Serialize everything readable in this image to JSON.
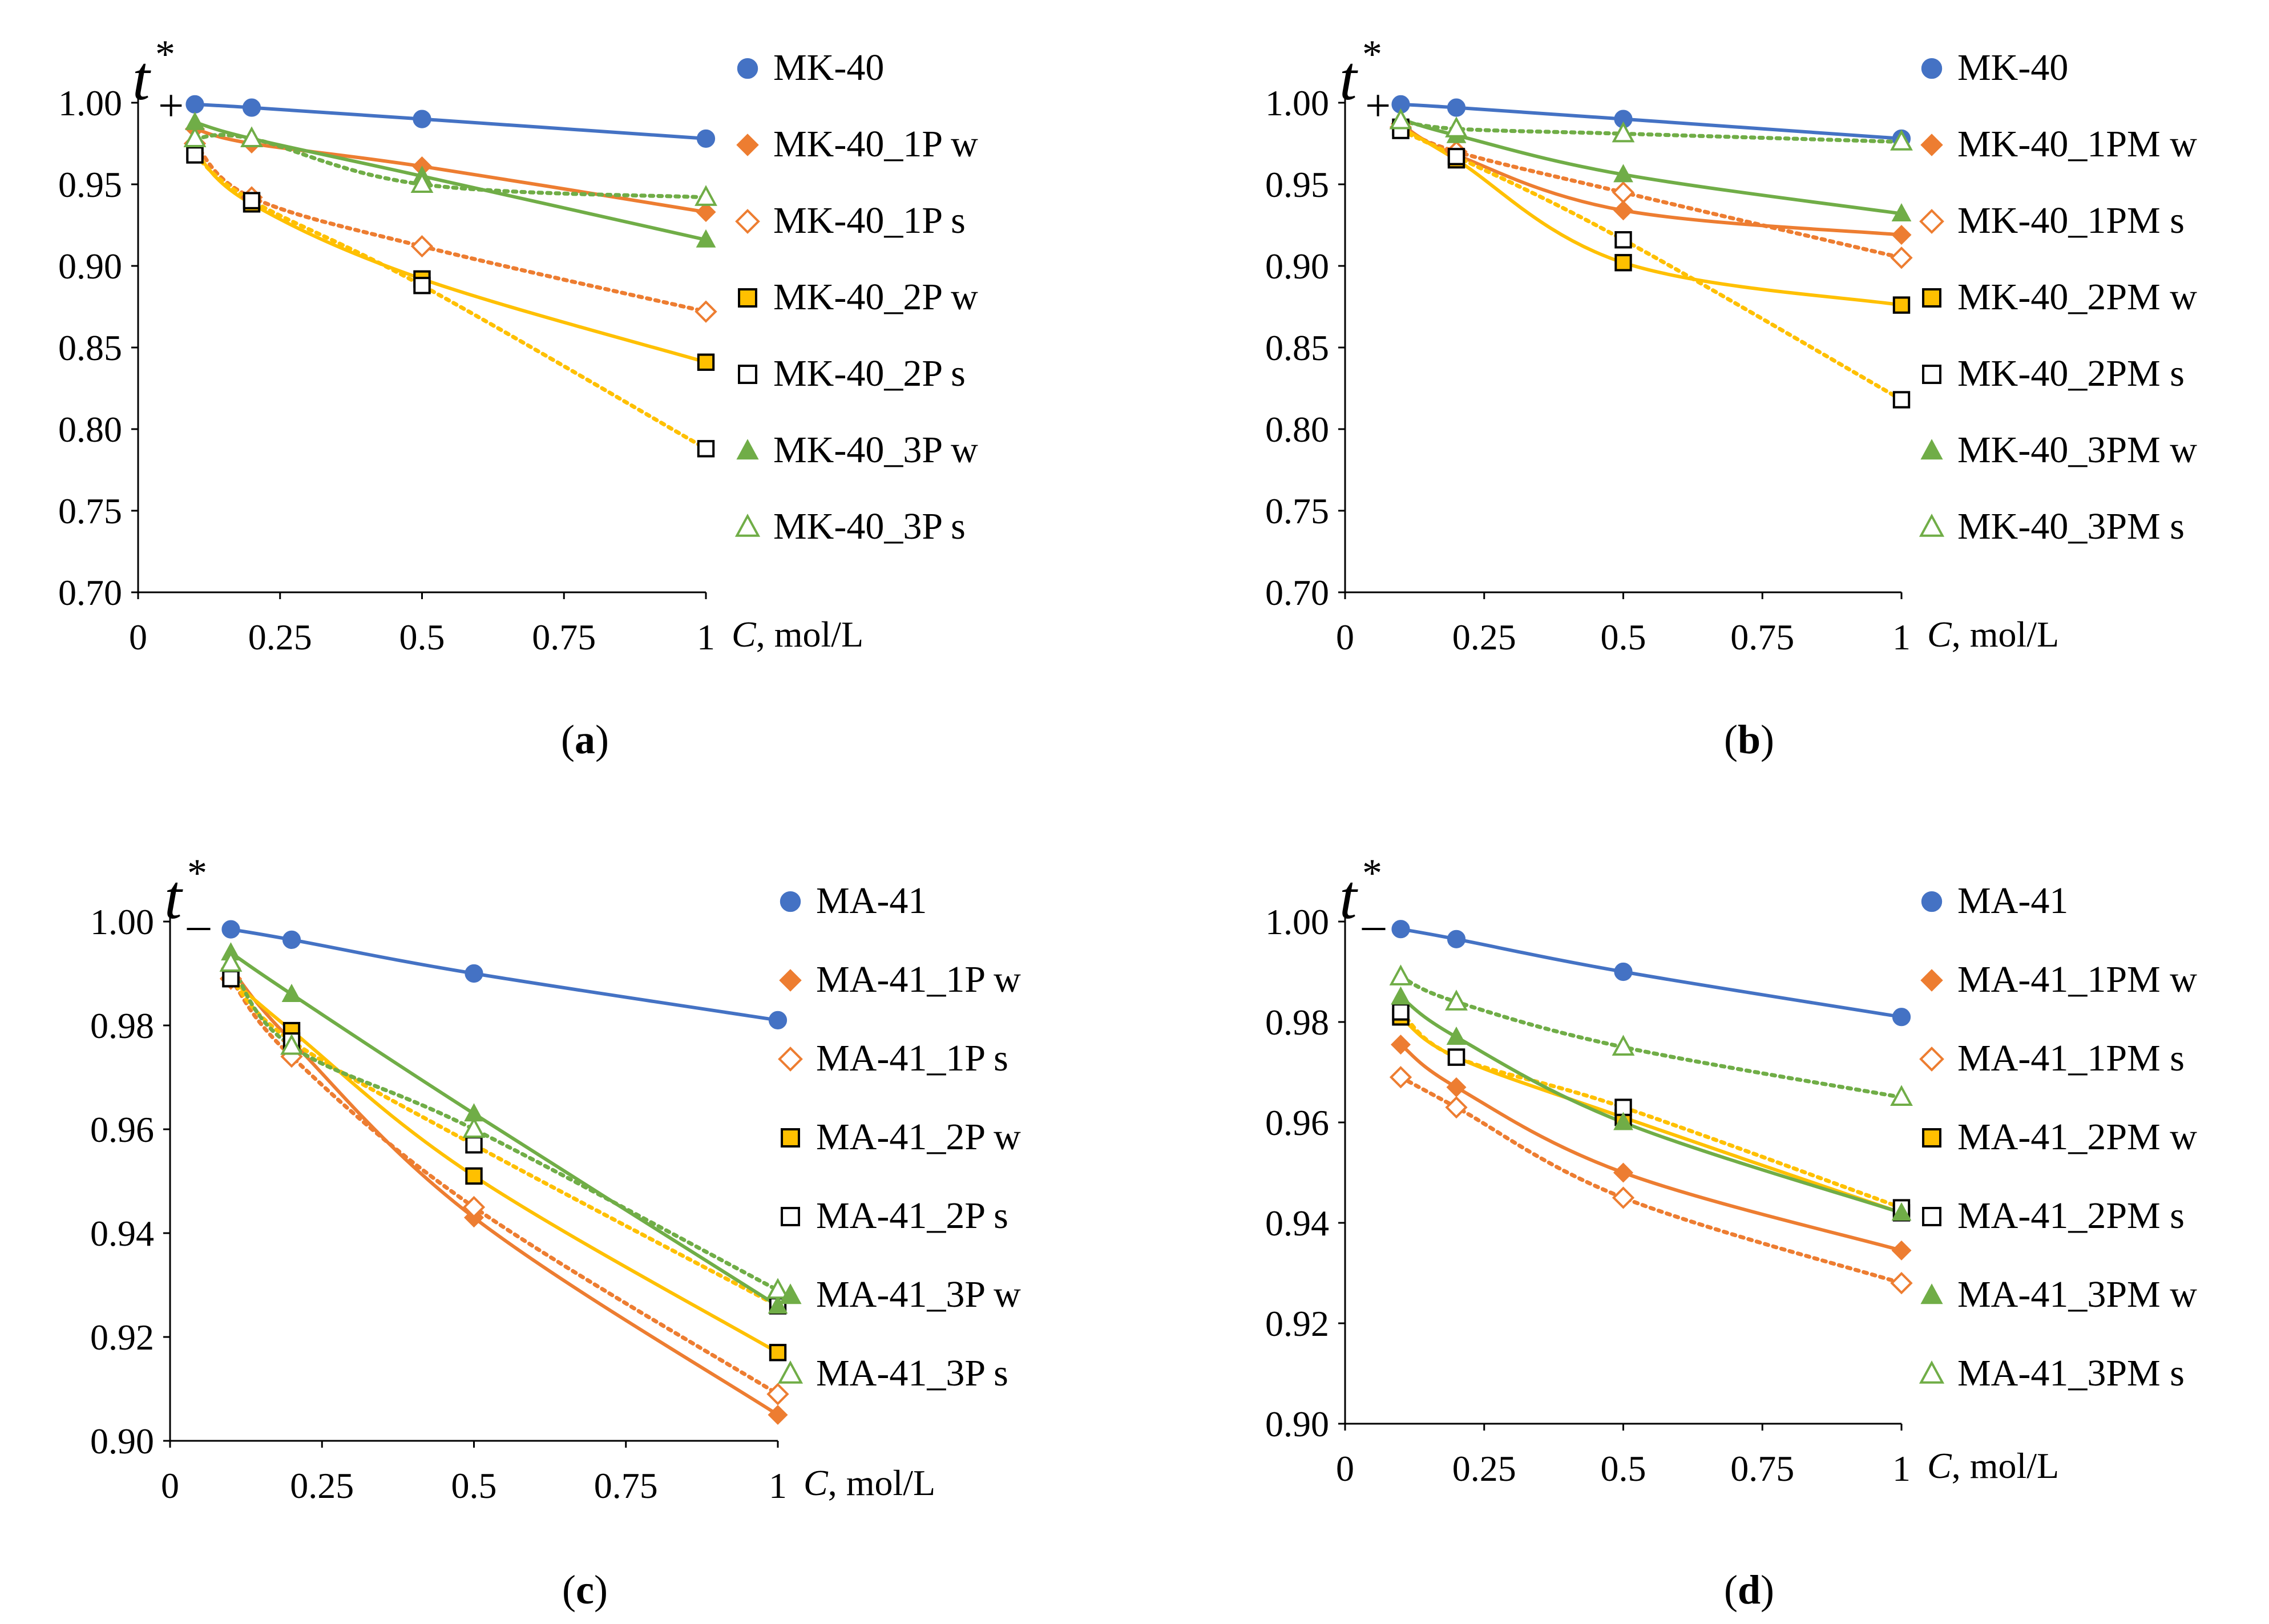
{
  "chart_data": [
    {
      "id": "a",
      "type": "line",
      "panel_label": "a",
      "ylabel": {
        "main": "t",
        "sub": "+",
        "sup": "*"
      },
      "xlabel": {
        "var": "C",
        "unit": ", mol/L"
      },
      "xlim": [
        0,
        1
      ],
      "ylim": [
        0.7,
        1.0
      ],
      "xticks": [
        "0",
        "0.25",
        "0.5",
        "0.75",
        "1"
      ],
      "yticks": [
        "0.70",
        "0.75",
        "0.80",
        "0.85",
        "0.90",
        "0.95",
        "1.00"
      ],
      "x": [
        0.1,
        0.2,
        0.5,
        1.0
      ],
      "legend_position": "right",
      "series": [
        {
          "name": "MK-40",
          "values": [
            0.999,
            0.997,
            0.99,
            0.978
          ],
          "marker": "circle",
          "color": "#4472C4",
          "filled": true,
          "line": "solid"
        },
        {
          "name": "MK-40_1P w",
          "values": [
            0.984,
            0.975,
            0.961,
            0.933
          ],
          "marker": "diamond",
          "color": "#ED7D31",
          "filled": true,
          "line": "solid"
        },
        {
          "name": "MK-40_1P s",
          "values": [
            0.975,
            0.942,
            0.912,
            0.872
          ],
          "marker": "diamond",
          "color": "#ED7D31",
          "filled": false,
          "line": "dotted"
        },
        {
          "name": "MK-40_2P w",
          "values": [
            0.97,
            0.938,
            0.892,
            0.841
          ],
          "marker": "square",
          "color": "#FFC000",
          "filled": true,
          "line": "solid"
        },
        {
          "name": "MK-40_2P s",
          "values": [
            0.968,
            0.94,
            0.888,
            0.788
          ],
          "marker": "square",
          "color": "#000000",
          "filled": false,
          "line": "dotted"
        },
        {
          "name": "MK-40_3P w",
          "values": [
            0.988,
            0.978,
            0.955,
            0.916
          ],
          "marker": "triangle",
          "color": "#70AD47",
          "filled": true,
          "line": "solid"
        },
        {
          "name": "MK-40_3P s",
          "values": [
            0.978,
            0.978,
            0.95,
            0.942
          ],
          "marker": "triangle",
          "color": "#70AD47",
          "filled": false,
          "line": "dotted"
        }
      ]
    },
    {
      "id": "b",
      "type": "line",
      "panel_label": "b",
      "ylabel": {
        "main": "t",
        "sub": "+",
        "sup": "*"
      },
      "xlabel": {
        "var": "C",
        "unit": ", mol/L"
      },
      "xlim": [
        0,
        1
      ],
      "ylim": [
        0.7,
        1.0
      ],
      "xticks": [
        "0",
        "0.25",
        "0.5",
        "0.75",
        "1"
      ],
      "yticks": [
        "0.70",
        "0.75",
        "0.80",
        "0.85",
        "0.90",
        "0.95",
        "1.00"
      ],
      "x": [
        0.1,
        0.2,
        0.5,
        1.0
      ],
      "legend_position": "right",
      "series": [
        {
          "name": "MK-40",
          "values": [
            0.999,
            0.997,
            0.99,
            0.978
          ],
          "marker": "circle",
          "color": "#4472C4",
          "filled": true,
          "line": "solid"
        },
        {
          "name": "MK-40_1PM w",
          "values": [
            0.987,
            0.968,
            0.934,
            0.919
          ],
          "marker": "diamond",
          "color": "#ED7D31",
          "filled": true,
          "line": "solid"
        },
        {
          "name": "MK-40_1PM s",
          "values": [
            0.985,
            0.97,
            0.945,
            0.905
          ],
          "marker": "diamond",
          "color": "#ED7D31",
          "filled": false,
          "line": "dotted"
        },
        {
          "name": "MK-40_2PM w",
          "values": [
            0.985,
            0.965,
            0.902,
            0.876
          ],
          "marker": "square",
          "color": "#FFC000",
          "filled": true,
          "line": "solid"
        },
        {
          "name": "MK-40_2PM s",
          "values": [
            0.983,
            0.967,
            0.916,
            0.818
          ],
          "marker": "square",
          "color": "#000000",
          "filled": false,
          "line": "dotted"
        },
        {
          "name": "MK-40_3PM w",
          "values": [
            0.99,
            0.98,
            0.956,
            0.932
          ],
          "marker": "triangle",
          "color": "#70AD47",
          "filled": true,
          "line": "solid"
        },
        {
          "name": "MK-40_3PM s",
          "values": [
            0.989,
            0.984,
            0.981,
            0.976
          ],
          "marker": "triangle",
          "color": "#70AD47",
          "filled": false,
          "line": "dotted"
        }
      ]
    },
    {
      "id": "c",
      "type": "line",
      "panel_label": "c",
      "ylabel": {
        "main": "t",
        "sub": "–",
        "sup": "*"
      },
      "xlabel": {
        "var": "C",
        "unit": ", mol/L"
      },
      "xlim": [
        0,
        1
      ],
      "ylim": [
        0.9,
        1.0
      ],
      "xticks": [
        "0",
        "0.25",
        "0.5",
        "0.75",
        "1"
      ],
      "yticks": [
        "0.90",
        "0.92",
        "0.94",
        "0.96",
        "0.98",
        "1.00"
      ],
      "x": [
        0.1,
        0.2,
        0.5,
        1.0
      ],
      "legend_position": "right",
      "series": [
        {
          "name": "MA-41",
          "values": [
            0.9985,
            0.9965,
            0.99,
            0.981
          ],
          "marker": "circle",
          "color": "#4472C4",
          "filled": true,
          "line": "solid"
        },
        {
          "name": "MA-41_1P w",
          "values": [
            0.991,
            0.977,
            0.943,
            0.905
          ],
          "marker": "diamond",
          "color": "#ED7D31",
          "filled": true,
          "line": "solid"
        },
        {
          "name": "MA-41_1P s",
          "values": [
            0.989,
            0.974,
            0.945,
            0.909
          ],
          "marker": "diamond",
          "color": "#ED7D31",
          "filled": false,
          "line": "dotted"
        },
        {
          "name": "MA-41_2P w",
          "values": [
            0.989,
            0.979,
            0.951,
            0.917
          ],
          "marker": "square",
          "color": "#FFC000",
          "filled": true,
          "line": "solid"
        },
        {
          "name": "MA-41_2P s",
          "values": [
            0.989,
            0.977,
            0.957,
            0.926
          ],
          "marker": "square",
          "color": "#000000",
          "filled": false,
          "line": "dotted"
        },
        {
          "name": "MA-41_3P w",
          "values": [
            0.994,
            0.986,
            0.963,
            0.926
          ],
          "marker": "triangle",
          "color": "#70AD47",
          "filled": true,
          "line": "solid"
        },
        {
          "name": "MA-41_3P s",
          "values": [
            0.992,
            0.976,
            0.96,
            0.929
          ],
          "marker": "triangle",
          "color": "#70AD47",
          "filled": false,
          "line": "dotted"
        }
      ]
    },
    {
      "id": "d",
      "type": "line",
      "panel_label": "d",
      "ylabel": {
        "main": "t",
        "sub": "–",
        "sup": "*"
      },
      "xlabel": {
        "var": "C",
        "unit": ", mol/L"
      },
      "xlim": [
        0,
        1
      ],
      "ylim": [
        0.9,
        1.0
      ],
      "xticks": [
        "0",
        "0.25",
        "0.5",
        "0.75",
        "1"
      ],
      "yticks": [
        "0.90",
        "0.92",
        "0.94",
        "0.96",
        "0.98",
        "1.00"
      ],
      "x": [
        0.1,
        0.2,
        0.5,
        1.0
      ],
      "legend_position": "right",
      "series": [
        {
          "name": "MA-41",
          "values": [
            0.9985,
            0.9965,
            0.99,
            0.981
          ],
          "marker": "circle",
          "color": "#4472C4",
          "filled": true,
          "line": "solid"
        },
        {
          "name": "MA-41_1PM w",
          "values": [
            0.9755,
            0.967,
            0.95,
            0.9345
          ],
          "marker": "diamond",
          "color": "#ED7D31",
          "filled": true,
          "line": "solid"
        },
        {
          "name": "MA-41_1PM s",
          "values": [
            0.969,
            0.963,
            0.945,
            0.928
          ],
          "marker": "diamond",
          "color": "#ED7D31",
          "filled": false,
          "line": "dotted"
        },
        {
          "name": "MA-41_2PM w",
          "values": [
            0.981,
            0.973,
            0.961,
            0.942
          ],
          "marker": "square",
          "color": "#FFC000",
          "filled": true,
          "line": "solid"
        },
        {
          "name": "MA-41_2PM s",
          "values": [
            0.982,
            0.973,
            0.963,
            0.943
          ],
          "marker": "square",
          "color": "#000000",
          "filled": false,
          "line": "dotted"
        },
        {
          "name": "MA-41_3PM w",
          "values": [
            0.985,
            0.977,
            0.96,
            0.942
          ],
          "marker": "triangle",
          "color": "#70AD47",
          "filled": true,
          "line": "solid"
        },
        {
          "name": "MA-41_3PM s",
          "values": [
            0.989,
            0.984,
            0.975,
            0.965
          ],
          "marker": "triangle",
          "color": "#70AD47",
          "filled": false,
          "line": "dotted"
        }
      ]
    }
  ]
}
